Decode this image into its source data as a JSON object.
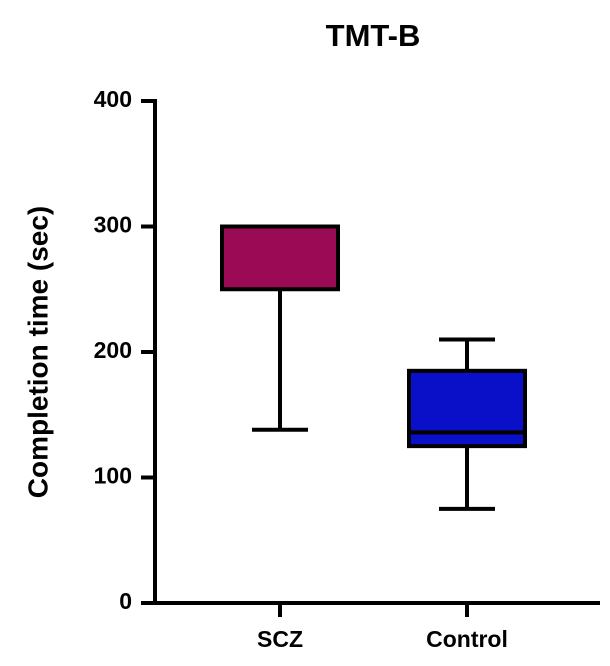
{
  "chart_data": {
    "type": "box",
    "title": "TMT-B",
    "y_label": "Completion time (sec)",
    "categories": [
      "SCZ",
      "Control"
    ],
    "boxes": [
      {
        "min": 138,
        "q1": 250,
        "median": 300,
        "q3": 300,
        "max": 300,
        "color": "#9b0a55"
      },
      {
        "min": 75,
        "q1": 125,
        "median": 136,
        "q3": 185,
        "max": 210,
        "color": "#0a0fc8"
      }
    ],
    "ylim": [
      0,
      400
    ],
    "yticks": [
      0,
      100,
      200,
      300,
      400
    ]
  }
}
